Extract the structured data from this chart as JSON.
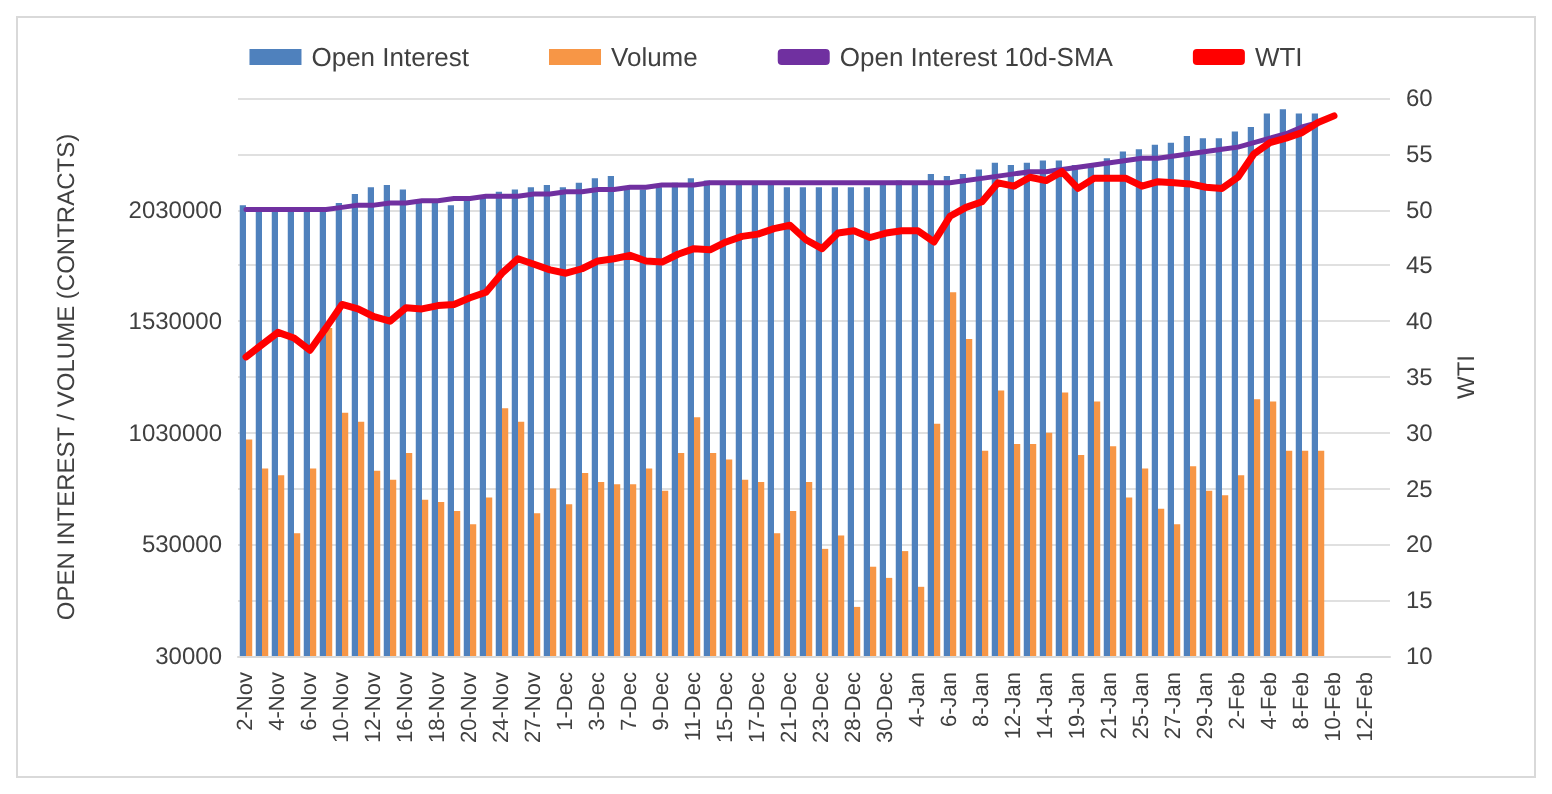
{
  "chart_data": {
    "type": "bar",
    "categories": [
      "2-Nov",
      null,
      "4-Nov",
      null,
      "6-Nov",
      null,
      "10-Nov",
      null,
      "12-Nov",
      null,
      "16-Nov",
      null,
      "18-Nov",
      null,
      "20-Nov",
      null,
      "24-Nov",
      null,
      "27-Nov",
      null,
      "1-Dec",
      null,
      "3-Dec",
      null,
      "7-Dec",
      null,
      "9-Dec",
      null,
      "11-Dec",
      null,
      "15-Dec",
      null,
      "17-Dec",
      null,
      "21-Dec",
      null,
      "23-Dec",
      null,
      "28-Dec",
      null,
      "30-Dec",
      null,
      "4-Jan",
      null,
      "6-Jan",
      null,
      "8-Jan",
      null,
      "12-Jan",
      null,
      "14-Jan",
      null,
      "19-Jan",
      null,
      "21-Jan",
      null,
      "25-Jan",
      null,
      "27-Jan",
      null,
      "29-Jan",
      null,
      "2-Feb",
      null,
      "4-Feb",
      null,
      "8-Feb",
      null,
      "10-Feb",
      null,
      "12-Feb",
      null
    ],
    "series": [
      {
        "name": "Open Interest",
        "color": "#4f81bd",
        "values": [
          2050000,
          2030000,
          2030000,
          2030000,
          2030000,
          2030000,
          2060000,
          2100000,
          2130000,
          2140000,
          2120000,
          2060000,
          2070000,
          2050000,
          2070000,
          2090000,
          2110000,
          2120000,
          2130000,
          2140000,
          2130000,
          2150000,
          2170000,
          2180000,
          2130000,
          2120000,
          2130000,
          2150000,
          2170000,
          2160000,
          2150000,
          2150000,
          2150000,
          2150000,
          2130000,
          2130000,
          2130000,
          2130000,
          2130000,
          2130000,
          2150000,
          2160000,
          2150000,
          2190000,
          2180000,
          2190000,
          2210000,
          2240000,
          2230000,
          2240000,
          2250000,
          2250000,
          2230000,
          2230000,
          2260000,
          2290000,
          2300000,
          2320000,
          2330000,
          2360000,
          2350000,
          2350000,
          2380000,
          2400000,
          2460000,
          2480000,
          2460000,
          2460000,
          null,
          null,
          null,
          null
        ]
      },
      {
        "name": "Volume",
        "color": "#f79646",
        "values": [
          1000000,
          870000,
          840000,
          580000,
          870000,
          1500000,
          1120000,
          1080000,
          860000,
          820000,
          940000,
          730000,
          720000,
          680000,
          620000,
          740000,
          1140000,
          1080000,
          670000,
          780000,
          710000,
          850000,
          810000,
          800000,
          800000,
          870000,
          770000,
          940000,
          1100000,
          940000,
          910000,
          820000,
          810000,
          580000,
          680000,
          810000,
          510000,
          570000,
          250000,
          430000,
          380000,
          500000,
          340000,
          1070000,
          1660000,
          1450000,
          950000,
          1220000,
          980000,
          980000,
          1030000,
          1210000,
          930000,
          1170000,
          970000,
          740000,
          870000,
          690000,
          620000,
          880000,
          770000,
          750000,
          840000,
          1180000,
          1170000,
          950000,
          950000,
          950000,
          null,
          null,
          null,
          null
        ]
      },
      {
        "name": "Open Interest 10d-SMA",
        "type": "line",
        "color": "#7030a0",
        "values": [
          2030000,
          2030000,
          2030000,
          2030000,
          2030000,
          2030000,
          2040000,
          2050000,
          2050000,
          2060000,
          2060000,
          2070000,
          2070000,
          2080000,
          2080000,
          2090000,
          2090000,
          2090000,
          2100000,
          2100000,
          2110000,
          2110000,
          2120000,
          2120000,
          2130000,
          2130000,
          2140000,
          2140000,
          2140000,
          2150000,
          2150000,
          2150000,
          2150000,
          2150000,
          2150000,
          2150000,
          2150000,
          2150000,
          2150000,
          2150000,
          2150000,
          2150000,
          2150000,
          2150000,
          2150000,
          2160000,
          2170000,
          2180000,
          2190000,
          2200000,
          2200000,
          2210000,
          2220000,
          2230000,
          2240000,
          2250000,
          2260000,
          2260000,
          2270000,
          2280000,
          2290000,
          2300000,
          2310000,
          2330000,
          2350000,
          2370000,
          2400000,
          2420000,
          null,
          null,
          null,
          null
        ]
      },
      {
        "name": "WTI",
        "type": "line",
        "axis": "y2",
        "color": "#ff0000",
        "values": [
          36.8,
          37.9,
          39.0,
          38.5,
          37.4,
          39.4,
          41.5,
          41.1,
          40.4,
          40.0,
          41.2,
          41.1,
          41.4,
          41.5,
          42.1,
          42.6,
          44.3,
          45.6,
          45.1,
          44.6,
          44.3,
          44.7,
          45.4,
          45.6,
          45.9,
          45.4,
          45.3,
          46.0,
          46.5,
          46.4,
          47.1,
          47.6,
          47.8,
          48.3,
          48.6,
          47.3,
          46.5,
          47.9,
          48.1,
          47.5,
          47.9,
          48.1,
          48.1,
          47.1,
          49.4,
          50.2,
          50.7,
          52.4,
          52.1,
          52.9,
          52.6,
          53.4,
          51.9,
          52.8,
          52.8,
          52.8,
          52.1,
          52.5,
          52.4,
          52.3,
          52.0,
          51.9,
          52.9,
          55.0,
          56.0,
          56.4,
          56.9,
          57.8,
          58.4,
          null,
          null,
          null
        ]
      }
    ],
    "ylabel": "OPEN INTEREST / VOLUME (CONTRACTS)",
    "y2label": "WTI",
    "ylim": [
      30000,
      2530000
    ],
    "yticks": [
      30000,
      530000,
      1030000,
      1530000,
      2030000
    ],
    "y2lim": [
      10,
      60
    ],
    "y2ticks": [
      10,
      15,
      20,
      25,
      30,
      35,
      40,
      45,
      50,
      55,
      60
    ],
    "grid": "y",
    "legend": "top",
    "marker": "none",
    "line_style": "solid"
  }
}
